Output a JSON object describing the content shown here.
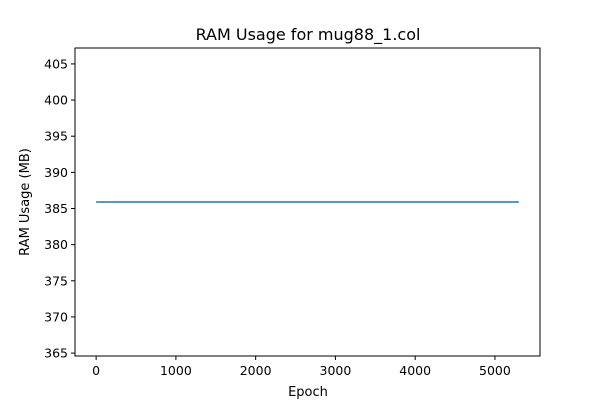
{
  "chart_data": {
    "type": "line",
    "title": "RAM Usage for mug88_1.col",
    "xlabel": "Epoch",
    "ylabel": "RAM Usage (MB)",
    "xlim": [
      -265,
      5565
    ],
    "ylim": [
      364.6,
      407.2
    ],
    "xticks": [
      0,
      1000,
      2000,
      3000,
      4000,
      5000
    ],
    "yticks": [
      365,
      370,
      375,
      380,
      385,
      390,
      395,
      400,
      405
    ],
    "grid": false,
    "series": [
      {
        "name": "",
        "color": "#1f77b4",
        "x": [
          0,
          5300
        ],
        "y": [
          385.9,
          385.9
        ]
      }
    ]
  }
}
